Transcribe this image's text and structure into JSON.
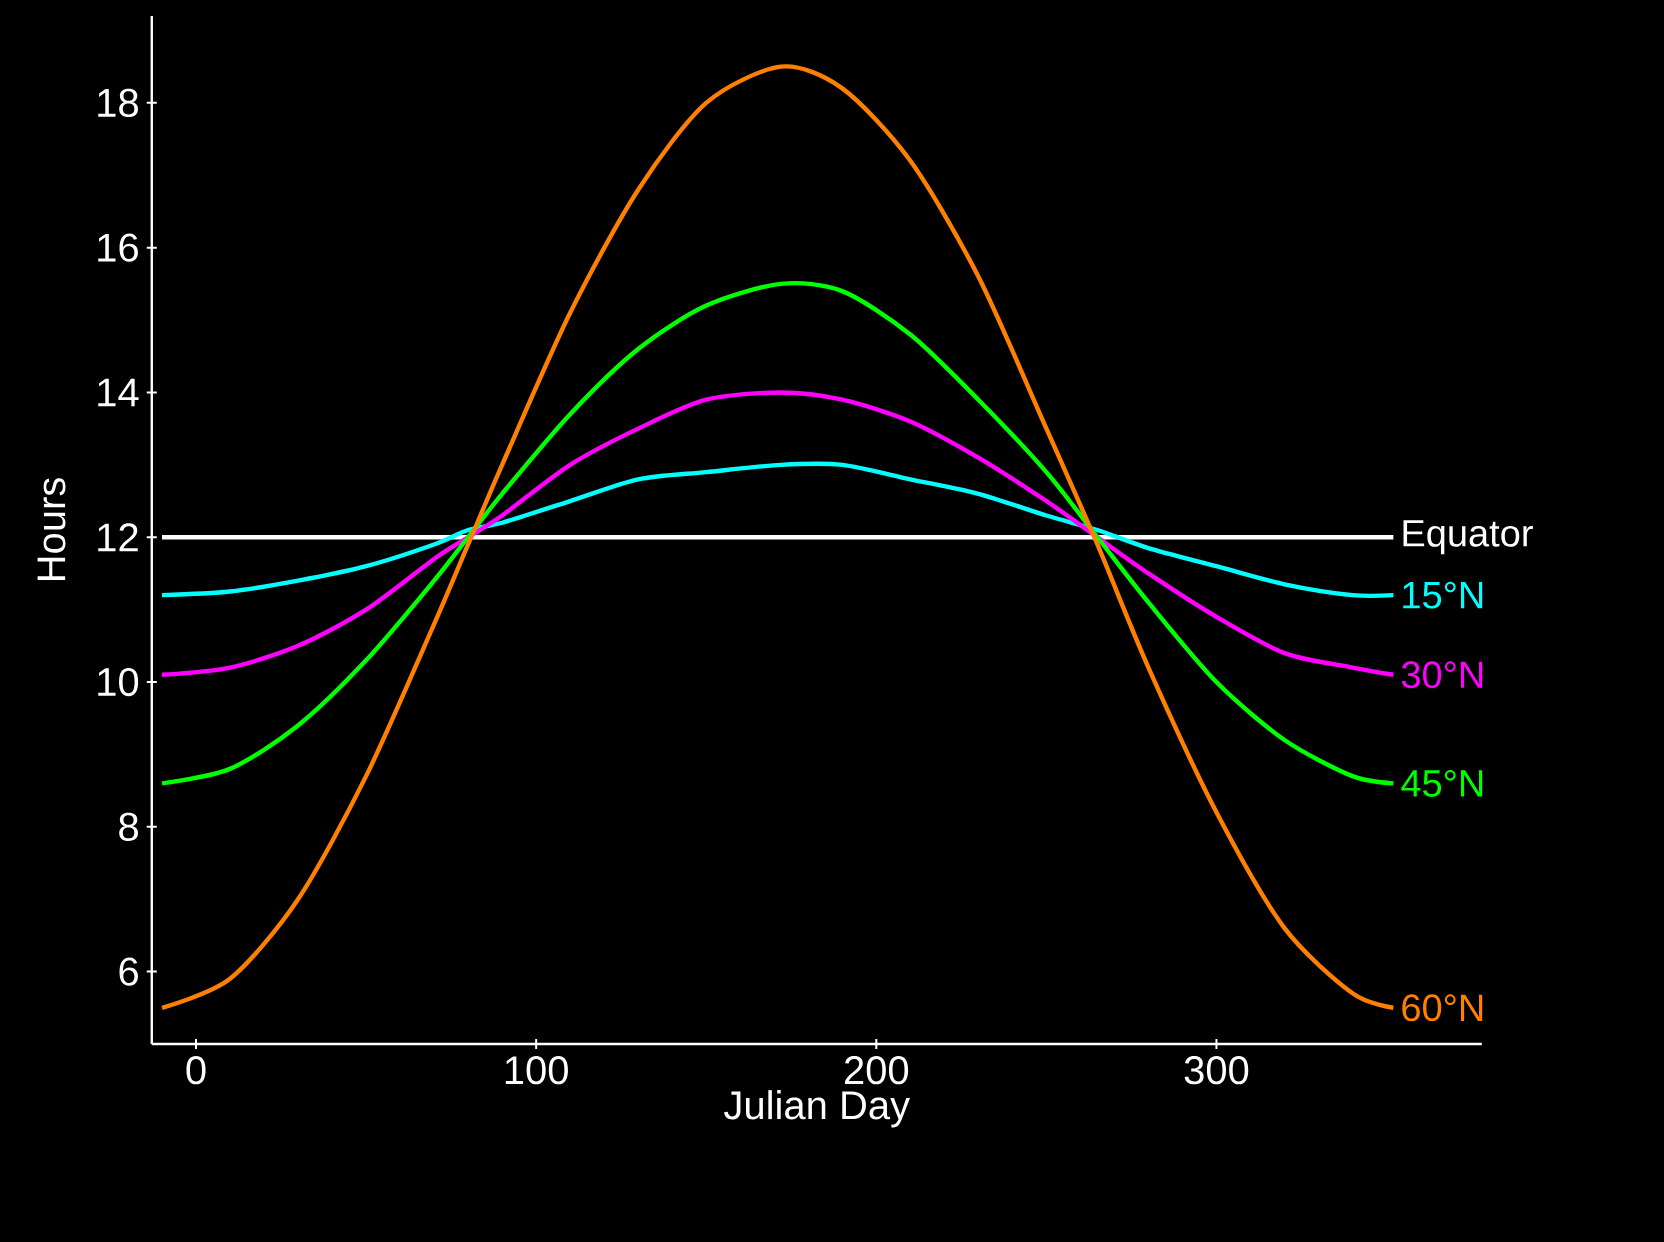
{
  "chart_data": {
    "type": "line",
    "xlabel": "Julian Day",
    "ylabel": "Hours",
    "x": [
      -10,
      10,
      30,
      50,
      70,
      80,
      90,
      110,
      130,
      150,
      172,
      190,
      210,
      230,
      250,
      265,
      280,
      300,
      320,
      340,
      352
    ],
    "xlim": [
      -13,
      378
    ],
    "ylim": [
      5,
      19.2
    ],
    "xticks": [
      0,
      100,
      200,
      300
    ],
    "yticks": [
      6,
      8,
      10,
      12,
      14,
      16,
      18
    ],
    "marker": "none",
    "line_style": "solid",
    "series": [
      {
        "name": "Equator",
        "color": "#ffffff",
        "x": [
          -10,
          352
        ],
        "values": [
          12,
          12
        ]
      },
      {
        "name": "15°N",
        "color": "#00ffff",
        "values": [
          11.2,
          11.25,
          11.4,
          11.6,
          11.9,
          12.1,
          12.2,
          12.5,
          12.8,
          12.9,
          13.0,
          13.0,
          12.8,
          12.6,
          12.3,
          12.1,
          11.85,
          11.6,
          11.35,
          11.2,
          11.2
        ]
      },
      {
        "name": "30°N",
        "color": "#ff00ff",
        "values": [
          10.1,
          10.2,
          10.5,
          11.0,
          11.7,
          12.0,
          12.3,
          13.0,
          13.5,
          13.9,
          14.0,
          13.9,
          13.6,
          13.1,
          12.5,
          12.0,
          11.5,
          10.9,
          10.4,
          10.2,
          10.1
        ]
      },
      {
        "name": "45°N",
        "color": "#00ff00",
        "values": [
          8.6,
          8.8,
          9.4,
          10.3,
          11.4,
          12.0,
          12.6,
          13.7,
          14.6,
          15.2,
          15.5,
          15.4,
          14.8,
          13.9,
          12.9,
          12.0,
          11.1,
          10.0,
          9.2,
          8.7,
          8.6
        ]
      },
      {
        "name": "60°N",
        "color": "#ff8000",
        "values": [
          5.5,
          5.9,
          7.0,
          8.7,
          10.8,
          11.9,
          13.0,
          15.1,
          16.8,
          18.0,
          18.5,
          18.2,
          17.2,
          15.6,
          13.5,
          11.9,
          10.2,
          8.2,
          6.6,
          5.7,
          5.5
        ]
      }
    ]
  }
}
